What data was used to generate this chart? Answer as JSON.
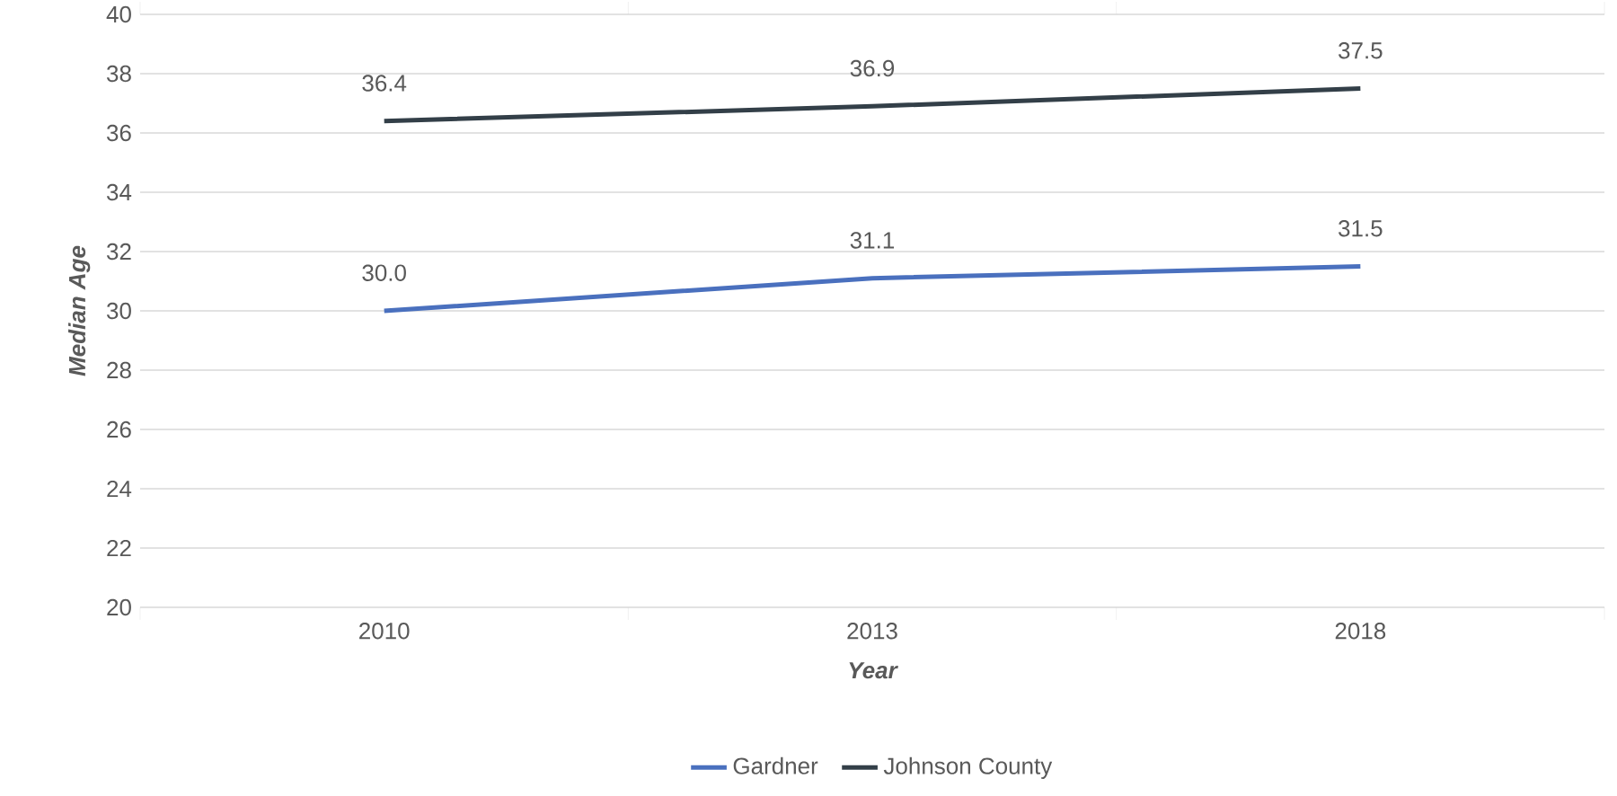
{
  "chart_data": {
    "type": "line",
    "xlabel": "Year",
    "ylabel": "Median Age",
    "categories": [
      "2010",
      "2013",
      "2018"
    ],
    "series": [
      {
        "name": "Gardner",
        "color": "#4a70be",
        "values": [
          30.0,
          31.1,
          31.5
        ],
        "value_labels": [
          "30.0",
          "31.1",
          "31.5"
        ]
      },
      {
        "name": "Johnson County",
        "color": "#333f48",
        "values": [
          36.4,
          36.9,
          37.5
        ],
        "value_labels": [
          "36.4",
          "36.9",
          "37.5"
        ]
      }
    ],
    "ylim": [
      20,
      40
    ],
    "yticks": [
      20,
      22,
      24,
      26,
      28,
      30,
      32,
      34,
      36,
      38,
      40
    ],
    "grid": "y",
    "legend": "bottom"
  }
}
